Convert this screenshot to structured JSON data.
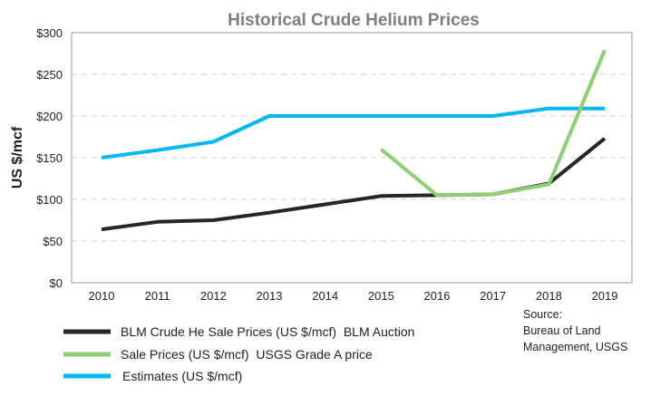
{
  "chart_data": {
    "type": "line",
    "title": "Historical Crude Helium Prices",
    "xlabel": "",
    "ylabel": "US $/mcf",
    "x": [
      2010,
      2011,
      2012,
      2013,
      2014,
      2015,
      2016,
      2017,
      2018,
      2019
    ],
    "ylim": [
      0,
      300
    ],
    "yticks": [
      0,
      50,
      100,
      150,
      200,
      250,
      300
    ],
    "ytick_labels": [
      "$0",
      "$50",
      "$100",
      "$150",
      "$200",
      "$250",
      "$300"
    ],
    "xtick_labels": [
      "2010",
      "2011",
      "2012",
      "2013",
      "2014",
      "2015",
      "2016",
      "2017",
      "2018",
      "2019"
    ],
    "grid": "horizontal dashed",
    "legend_position": "bottom",
    "series": [
      {
        "name": "BLM Crude He Sale Prices (US $/mcf)  BLM Auction",
        "color": "#262626",
        "values": [
          64,
          73,
          75,
          84,
          94,
          104,
          105,
          106,
          119,
          173
        ]
      },
      {
        "name": "Sale Prices (US $/mcf)  USGS Grade A price",
        "color": "#8fcf73",
        "values": [
          null,
          null,
          null,
          null,
          null,
          160,
          105,
          106,
          118,
          279
        ]
      },
      {
        "name": "Estimates (US $/mcf)",
        "color": "#00b8f0",
        "values": [
          150,
          159,
          169,
          200,
          200,
          200,
          200,
          200,
          209,
          209
        ]
      }
    ]
  },
  "source_lines": [
    "Source:",
    "Bureau of Land",
    "Management, USGS"
  ]
}
